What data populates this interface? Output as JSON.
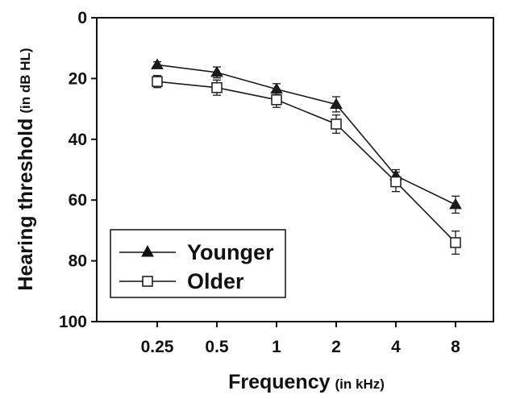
{
  "chart_data": {
    "type": "line",
    "xlabel": "Frequency",
    "xlabel_unit": "(in kHz)",
    "ylabel": "Hearing threshold",
    "ylabel_unit": "(in dB HL)",
    "categories": [
      "0.25",
      "0.5",
      "1",
      "2",
      "4",
      "8"
    ],
    "ylim": [
      0,
      100
    ],
    "y_inverted": true,
    "yticks": [
      "0",
      "20",
      "40",
      "60",
      "80",
      "100"
    ],
    "grid": false,
    "legend_position": "bottom-left",
    "series": [
      {
        "name": "Younger",
        "marker": "filled-triangle",
        "values": [
          15.5,
          18,
          23.5,
          28.5,
          52,
          61.5
        ],
        "errors": [
          1.0,
          1.8,
          1.8,
          2.5,
          2.0,
          2.8
        ]
      },
      {
        "name": "Older",
        "marker": "open-square",
        "values": [
          21,
          23,
          27,
          35,
          54,
          74
        ],
        "errors": [
          2.0,
          2.5,
          2.5,
          3.0,
          3.2,
          3.8
        ]
      }
    ],
    "colors": {
      "line": "#1a1a1a",
      "marker_fill": "#1a1a1a",
      "open_fill": "#ffffff"
    }
  }
}
